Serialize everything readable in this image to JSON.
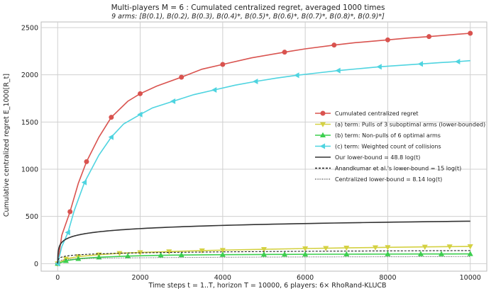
{
  "chart_data": {
    "type": "line",
    "title": "Multi-players M = 6 : Cumulated centralized regret, averaged 1000 times",
    "subtitle": "9 arms: [B(0.1), B(0.2), B(0.3), B(0.4)*, B(0.5)*, B(0.6)*, B(0.7)*, B(0.8)*, B(0.9)*]",
    "xlabel": "Time steps t = 1..T, horizon T = 10000, 6 players: 6× RhoRand-KLUCB",
    "ylabel": "Cumulative centralized regret E_1000[R_t]",
    "xlim": [
      -400,
      10400
    ],
    "ylim": [
      -80,
      2560
    ],
    "xticks": [
      0,
      2000,
      4000,
      6000,
      8000,
      10000
    ],
    "yticks": [
      0,
      500,
      1000,
      1500,
      2000,
      2500
    ],
    "xtick_labels": [
      "0",
      "2000",
      "4000",
      "6000",
      "8000",
      "10000"
    ],
    "ytick_labels": [
      "0",
      "500",
      "1000",
      "1500",
      "2000",
      "2500"
    ],
    "grid": true,
    "legend_position": "center-right",
    "series": [
      {
        "name": "Cumulated centralized regret",
        "color": "#d9534f",
        "marker": "circle",
        "x": [
          0,
          100,
          300,
          500,
          700,
          1000,
          1300,
          1700,
          2000,
          2400,
          3000,
          3500,
          4000,
          4700,
          5500,
          6000,
          6700,
          7200,
          8000,
          8500,
          9000,
          9700,
          10000
        ],
        "y": [
          0,
          300,
          550,
          850,
          1080,
          1340,
          1550,
          1720,
          1800,
          1880,
          1975,
          2060,
          2110,
          2180,
          2240,
          2275,
          2315,
          2340,
          2370,
          2390,
          2405,
          2430,
          2440
        ]
      },
      {
        "name": "(a) term: Pulls of 3 suboptimal arms (lower-bounded)",
        "color": "#d4d142",
        "marker": "triangle-down",
        "x": [
          0,
          200,
          500,
          1000,
          1500,
          2000,
          2700,
          3500,
          4000,
          5000,
          6000,
          6500,
          7000,
          7700,
          8000,
          8900,
          9500,
          10000
        ],
        "y": [
          0,
          50,
          75,
          95,
          110,
          118,
          128,
          138,
          143,
          152,
          160,
          163,
          167,
          171,
          173,
          177,
          180,
          182
        ]
      },
      {
        "name": "(b) term: Non-pulls of 6 optimal arms",
        "color": "#3ccf4e",
        "marker": "triangle-up",
        "x": [
          0,
          200,
          500,
          1000,
          1700,
          2500,
          3000,
          4000,
          5000,
          5500,
          6000,
          7000,
          8000,
          8800,
          9300,
          10000
        ],
        "y": [
          0,
          30,
          52,
          68,
          80,
          88,
          91,
          95,
          97,
          98,
          99,
          100,
          101,
          102,
          102,
          103
        ]
      },
      {
        "name": "(c) term: Weighted count of collisions",
        "color": "#4fd4e0",
        "marker": "left-triangle",
        "x": [
          0,
          100,
          250,
          400,
          650,
          1000,
          1300,
          1600,
          2000,
          2300,
          2800,
          3300,
          3800,
          4300,
          4800,
          5300,
          5800,
          6300,
          6800,
          7300,
          7800,
          8300,
          8800,
          9300,
          9700,
          10000
        ],
        "y": [
          0,
          180,
          330,
          560,
          860,
          1150,
          1340,
          1480,
          1580,
          1650,
          1720,
          1790,
          1840,
          1890,
          1930,
          1965,
          1995,
          2020,
          2045,
          2065,
          2085,
          2100,
          2115,
          2130,
          2140,
          2150
        ]
      },
      {
        "name": "Our lower-bound = 48.8 log(t)",
        "color": "#333333",
        "coef": 48.8,
        "dash": "solid"
      },
      {
        "name": "Anandkumar et al.'s lower-bound = 15 log(t)",
        "color": "#222222",
        "coef": 15,
        "dash": "dashed"
      },
      {
        "name": "Centralized lower-bound = 8.14 log(t)",
        "color": "#555555",
        "coef": 8.14,
        "dash": "dotted"
      }
    ]
  }
}
